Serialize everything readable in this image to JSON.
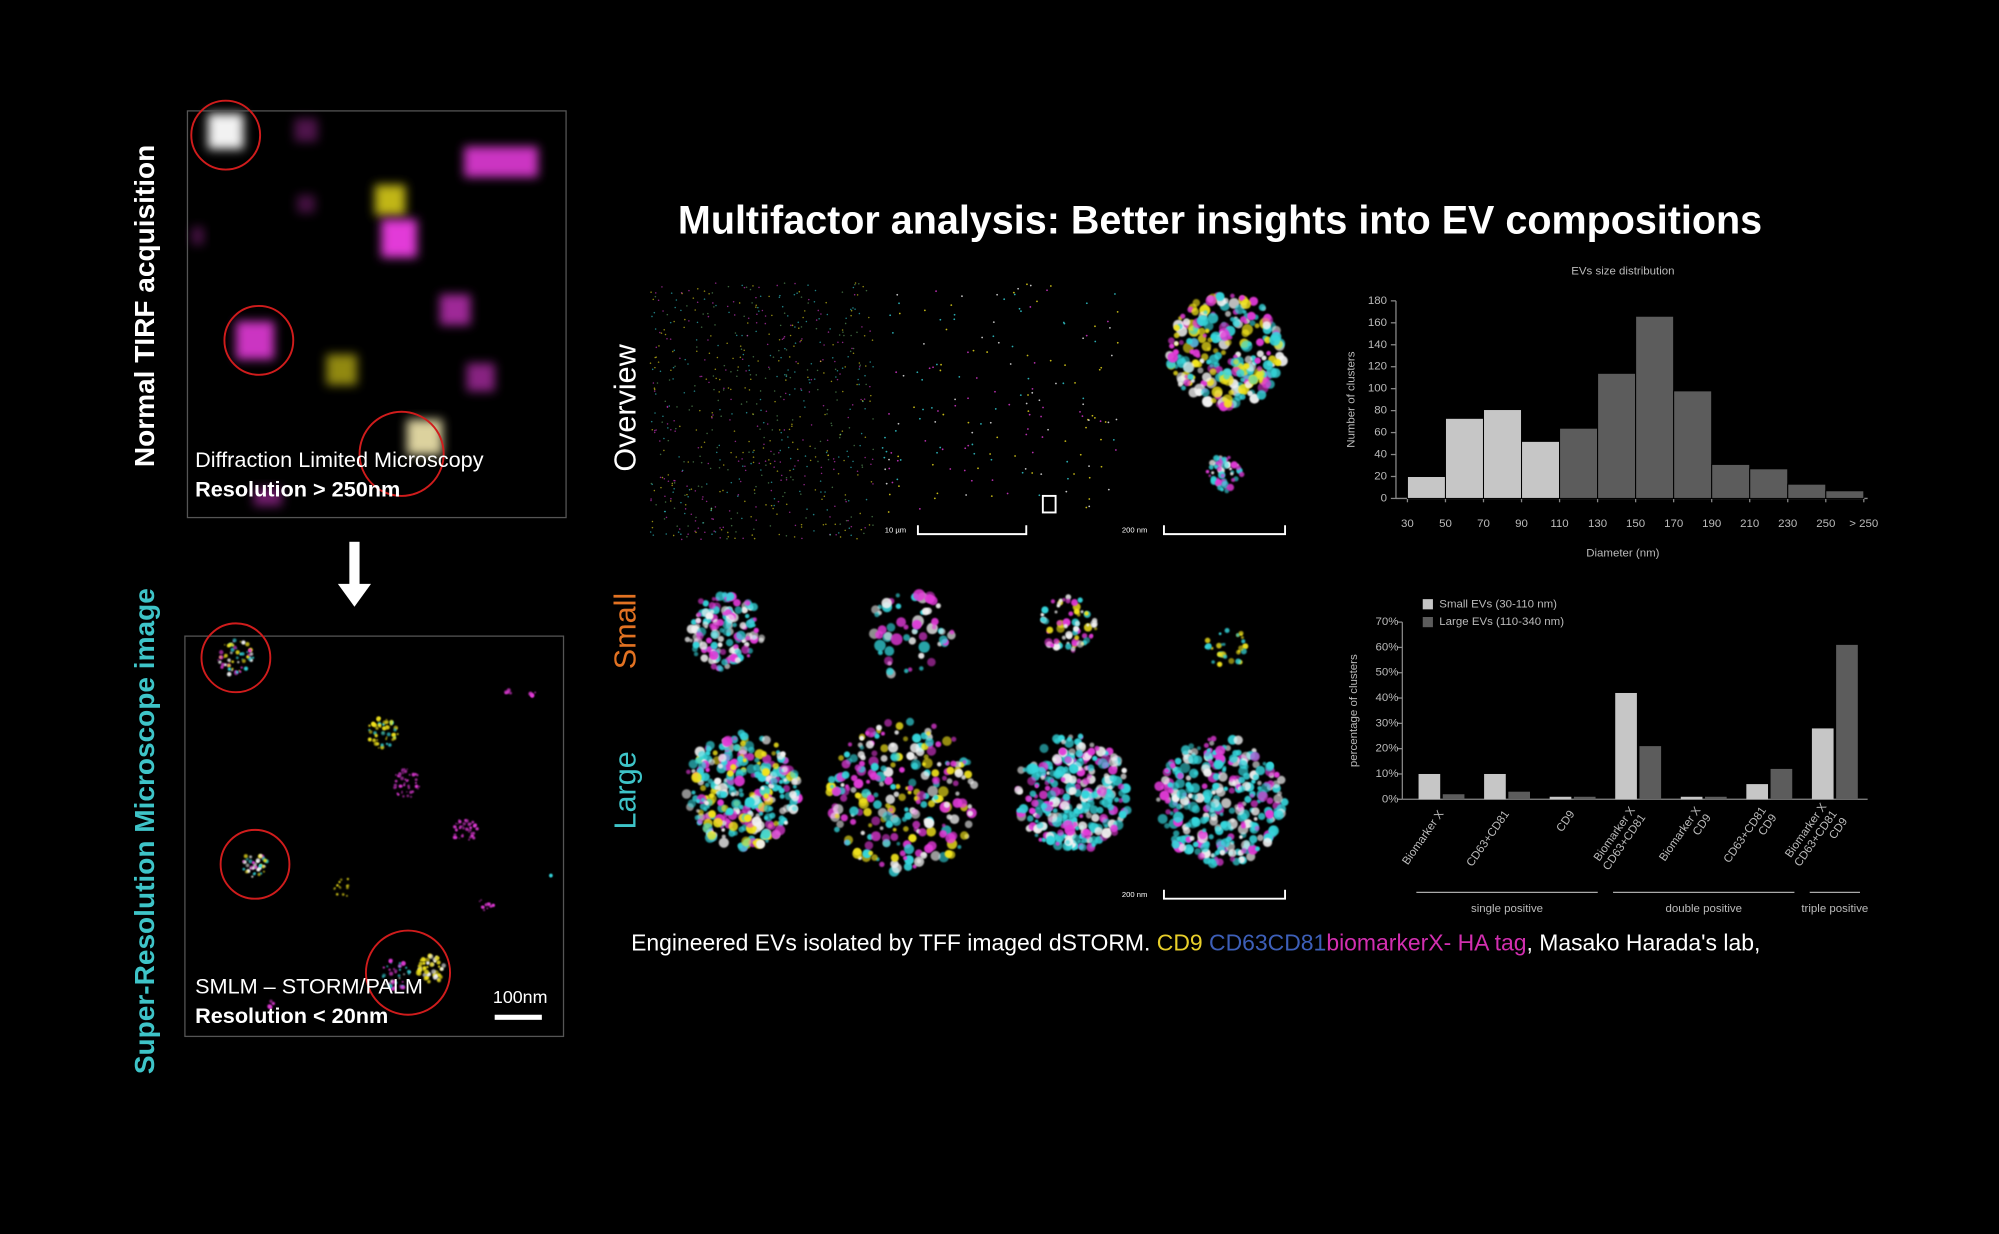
{
  "title": "Multifactor analysis: Better insights into EV compositions",
  "left": {
    "top_label": "Normal TIRF acquisition",
    "bottom_label": "Super-Resolution Microscope image",
    "tirf_method": "Diffraction Limited Microscopy",
    "tirf_resolution": "Resolution > 250nm",
    "sr_method": "SMLM – STORM/PALM",
    "sr_resolution": "Resolution < 20nm",
    "sr_scale": "100nm"
  },
  "rows": {
    "overview": "Overview",
    "small": "Small",
    "large": "Large"
  },
  "scale_labels": {
    "overview_wide": "10 µm",
    "overview_zoom": "200 nm",
    "large": "200 nm"
  },
  "caption": [
    {
      "text": "Engineered EVs isolated by TFF imaged dSTORM. ",
      "color": "#ffffff"
    },
    {
      "text": "CD9",
      "color": "#e8cf2a"
    },
    {
      "text": " CD63CD81",
      "color": "#3d5fb8"
    },
    {
      "text": "biomarkerX- HA tag",
      "color": "#d22fb0"
    },
    {
      "text": ", Masako Harada's lab,",
      "color": "#ffffff"
    }
  ],
  "chart_data": [
    {
      "type": "histogram",
      "title": "EVs size distribution",
      "xlabel": "Diameter (nm)",
      "ylabel": "Number of clusters",
      "bins": [
        30,
        50,
        70,
        90,
        110,
        130,
        150,
        170,
        190,
        210,
        230,
        250,
        270
      ],
      "counts": [
        20,
        73,
        81,
        52,
        64,
        114,
        166,
        98,
        31,
        27,
        13,
        7
      ],
      "colors": [
        "#c6c6c6",
        "#c6c6c6",
        "#c6c6c6",
        "#c6c6c6",
        "#5c5c5c",
        "#5c5c5c",
        "#5c5c5c",
        "#5c5c5c",
        "#5c5c5c",
        "#5c5c5c",
        "#5c5c5c",
        "#5c5c5c"
      ],
      "xlim": [
        30,
        270
      ],
      "ylim": [
        0,
        180
      ],
      "xticks": [
        30,
        50,
        70,
        90,
        110,
        130,
        150,
        170,
        190,
        210,
        230,
        250,
        {
          "value": 270,
          "label": "> 250"
        }
      ],
      "yticks": [
        0,
        20,
        40,
        60,
        80,
        100,
        120,
        140,
        160,
        180
      ]
    },
    {
      "type": "bar",
      "ylabel": "percentage of clusters",
      "categories": [
        [
          "Biomarker X"
        ],
        [
          "CD63+CD81"
        ],
        [
          "CD9"
        ],
        [
          "Biomarker X",
          "CD63+CD81"
        ],
        [
          "Biomarker X",
          "CD9"
        ],
        [
          "CD63+CD81",
          "CD9"
        ],
        [
          "Biomarker X",
          "CD63+CD81",
          "CD9"
        ]
      ],
      "label_colors": {
        "Biomarker X": "#8e2e8e",
        "CD63+CD81": "#3a8aa6",
        "CD9": "#b3a128"
      },
      "series": [
        {
          "name": "Small EVs (30-110 nm)",
          "color": "#c6c6c6",
          "values": [
            10,
            10,
            1,
            42,
            1,
            6,
            28
          ]
        },
        {
          "name": "Large EVs (110-340 nm)",
          "color": "#5c5c5c",
          "values": [
            2,
            3,
            1,
            21,
            1,
            12,
            61
          ]
        }
      ],
      "groups": [
        {
          "name": "single positive",
          "count": 3
        },
        {
          "name": "double positive",
          "count": 3
        },
        {
          "name": "triple positive",
          "count": 1
        }
      ],
      "ylim": [
        0,
        70
      ],
      "yticks": [
        {
          "value": 0,
          "label": "0%"
        },
        {
          "value": 10,
          "label": "10%"
        },
        {
          "value": 20,
          "label": "20%"
        },
        {
          "value": 30,
          "label": "30%"
        },
        {
          "value": 40,
          "label": "40%"
        },
        {
          "value": 50,
          "label": "50%"
        },
        {
          "value": 60,
          "label": "60%"
        },
        {
          "value": 70,
          "label": "70%"
        }
      ]
    }
  ]
}
